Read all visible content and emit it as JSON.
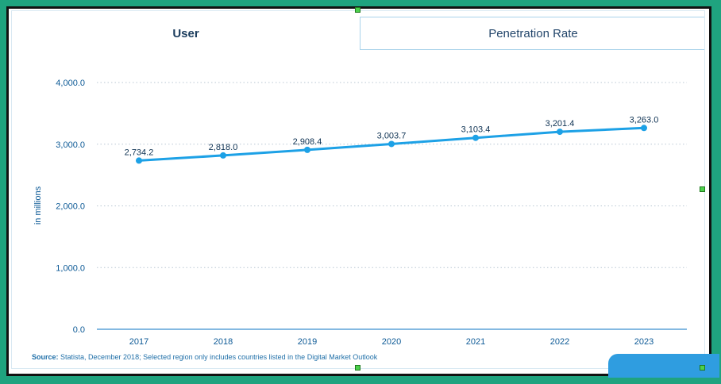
{
  "tabs": [
    {
      "label": "User",
      "active": true
    },
    {
      "label": "Penetration Rate",
      "active": false
    }
  ],
  "source": {
    "prefix": "Source:",
    "text": " Statista, December 2018; Selected region only includes countries listed in the Digital Market Outlook"
  },
  "colors": {
    "line": "#1da1e6",
    "axis_text": "#0d5a96",
    "background_frame": "#1fa37f"
  },
  "chart_data": {
    "type": "line",
    "x": [
      "2017",
      "2018",
      "2019",
      "2020",
      "2021",
      "2022",
      "2023"
    ],
    "series": [
      {
        "values": [
          2734.2,
          2818.0,
          2908.4,
          3003.7,
          3103.4,
          3201.4,
          3263.0
        ]
      }
    ],
    "data_labels": [
      "2,734.2",
      "2,818.0",
      "2,908.4",
      "3,003.7",
      "3,103.4",
      "3,201.4",
      "3,263.0"
    ],
    "ylabel": "in millions",
    "xlabel": "",
    "ylim": [
      0,
      4000
    ],
    "yticks": [
      0,
      1000,
      2000,
      3000,
      4000
    ],
    "ytick_labels": [
      "0.0",
      "1,000.0",
      "2,000.0",
      "3,000.0",
      "4,000.0"
    ],
    "grid": true
  }
}
